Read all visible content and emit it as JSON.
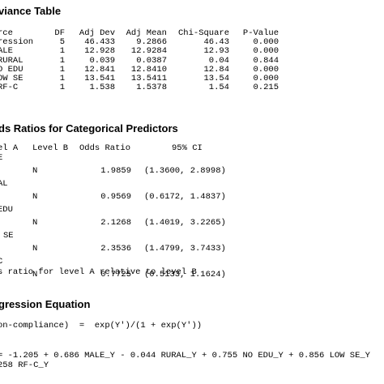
{
  "anova": {
    "title": "viance Table",
    "columns": [
      "rce",
      "DF",
      "Adj Dev",
      "Adj Mean",
      "Chi-Square",
      "P-Value"
    ],
    "rows": [
      [
        "ression",
        "5",
        "46.433",
        "9.2866",
        "46.43",
        "0.000"
      ],
      [
        "ALE",
        "1",
        "12.928",
        "12.9284",
        "12.93",
        "0.000"
      ],
      [
        "RURAL",
        "1",
        "0.039",
        "0.0387",
        "0.04",
        "0.844"
      ],
      [
        "O EDU",
        "1",
        "12.841",
        "12.8410",
        "12.84",
        "0.000"
      ],
      [
        "OW SE",
        "1",
        "13.541",
        "13.5411",
        "13.54",
        "0.000"
      ],
      [
        "RF-C",
        "1",
        "1.538",
        "1.5378",
        "1.54",
        "0.215"
      ]
    ]
  },
  "odds": {
    "title": "ds Ratios for Categorical Predictors",
    "columns": [
      "el A",
      "Level B",
      "Odds Ratio",
      "95% CI"
    ],
    "groups": [
      {
        "label": "E",
        "level_b": "N",
        "ratio": "1.9859",
        "ci": "(1.3600, 2.8998)"
      },
      {
        "label": "AL",
        "level_b": "N",
        "ratio": "0.9569",
        "ci": "(0.6172, 1.4837)"
      },
      {
        "label": "EDU",
        "level_b": "N",
        "ratio": "2.1268",
        "ci": "(1.4019, 3.2265)"
      },
      {
        "label": "SE",
        "level_b": "N",
        "ratio": "2.3536",
        "ci": "(1.4799, 3.7433)"
      },
      {
        "label": "C",
        "level_b": "N",
        "ratio": "0.7725",
        "ci": "(0.5133, 1.1624)"
      }
    ],
    "note": "s ratio for level A relative to level B"
  },
  "regression": {
    "title": "gression Equation",
    "line1": "on-compliance)  =  exp(Y')/(1 + exp(Y'))",
    "line2": "= -1.205 + 0.686 MALE_Y - 0.044 RURAL_Y + 0.755 NO EDU_Y + 0.856 LOW SE_Y",
    "line3": "258 RF-C_Y"
  }
}
